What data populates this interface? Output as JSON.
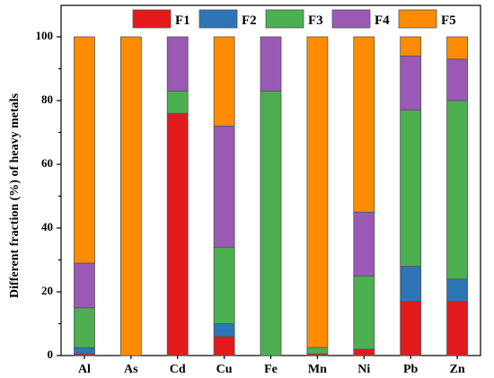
{
  "chart_data": {
    "type": "bar",
    "stacked": true,
    "ylabel": "Different fraction (%) of heavy metals",
    "xlabel": "",
    "ylim": [
      0,
      100
    ],
    "yticks": [
      0,
      20,
      40,
      60,
      80,
      100
    ],
    "grid": false,
    "legend_position": "top",
    "categories": [
      "Al",
      "As",
      "Cd",
      "Cu",
      "Fe",
      "Mn",
      "Ni",
      "Pb",
      "Zn"
    ],
    "series": [
      {
        "name": "F1",
        "color": "#e31a1c",
        "values": [
          0.5,
          0,
          76,
          6,
          0,
          0.5,
          2,
          17,
          17
        ]
      },
      {
        "name": "F2",
        "color": "#2e75b6",
        "values": [
          2,
          0,
          0,
          4,
          0,
          0,
          0,
          11,
          7
        ]
      },
      {
        "name": "F3",
        "color": "#4caf50",
        "values": [
          12.5,
          0,
          7,
          24,
          83,
          2,
          23,
          49,
          56
        ]
      },
      {
        "name": "F4",
        "color": "#9b59b6",
        "values": [
          14,
          0,
          17,
          38,
          17,
          0,
          20,
          17,
          13
        ]
      },
      {
        "name": "F5",
        "color": "#ff8c00",
        "values": [
          71,
          100,
          0,
          28,
          0,
          97.5,
          55,
          6,
          7
        ]
      }
    ]
  }
}
